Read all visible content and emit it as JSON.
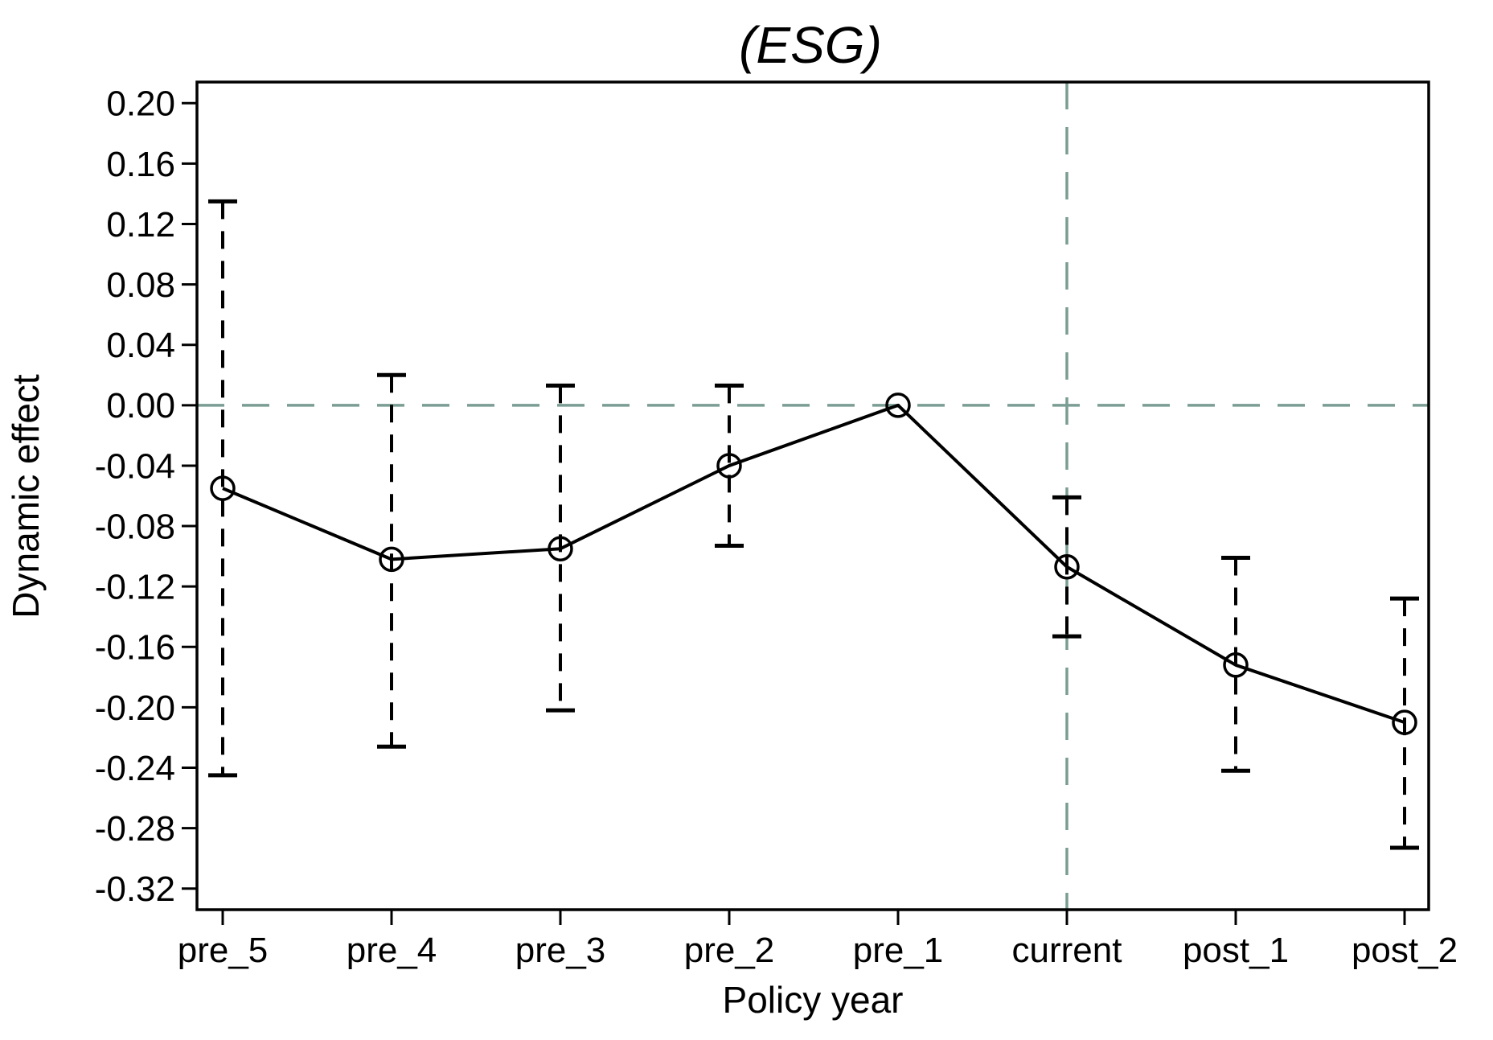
{
  "title": "(ESG)",
  "chart_data": {
    "type": "line",
    "title": "(ESG)",
    "xlabel": "Policy year",
    "ylabel": "Dynamic effect",
    "categories": [
      "pre_5",
      "pre_4",
      "pre_3",
      "pre_2",
      "pre_1",
      "current",
      "post_1",
      "post_2"
    ],
    "series": [
      {
        "name": "Dynamic effect",
        "marker": "hollow-circle",
        "values": [
          -0.055,
          -0.102,
          -0.095,
          -0.04,
          0.0,
          -0.107,
          -0.172,
          -0.21
        ],
        "ci_high": [
          0.135,
          0.02,
          0.013,
          0.013,
          null,
          -0.061,
          -0.101,
          -0.128
        ],
        "ci_low": [
          -0.245,
          -0.226,
          -0.202,
          -0.093,
          null,
          -0.153,
          -0.242,
          -0.293
        ]
      }
    ],
    "yticks": [
      0.2,
      0.16,
      0.12,
      0.08,
      0.04,
      0.0,
      -0.04,
      -0.08,
      -0.12,
      -0.16,
      -0.2,
      -0.24,
      -0.28,
      -0.32
    ],
    "ylim": [
      -0.334,
      0.214
    ],
    "grid": false,
    "legend": false,
    "reference_lines": {
      "hline_y": 0.0,
      "vline_category": "current"
    },
    "colors": {
      "series": "#000000",
      "reference": "#7b9e94",
      "background": "#ffffff"
    }
  }
}
